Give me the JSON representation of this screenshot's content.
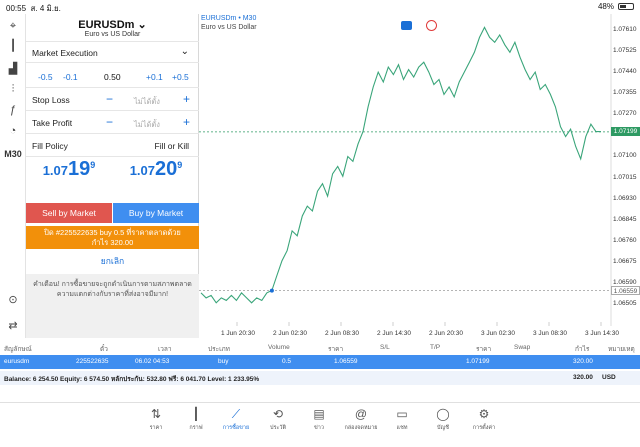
{
  "status_bar": {
    "time": "00:55",
    "date": "ส. 4 มิ.ย.",
    "battery": "48%",
    "battery_level": 0.48
  },
  "left_toolbar": {
    "items": [
      {
        "icon": "crosshair-icon",
        "glyph": "⌖"
      },
      {
        "icon": "candles-icon",
        "glyph": "┃"
      },
      {
        "icon": "bars-chart-icon",
        "glyph": "▟"
      },
      {
        "icon": "sliders-icon",
        "glyph": "⫶"
      },
      {
        "icon": "function-icon",
        "glyph": "ƒ"
      },
      {
        "icon": "shapes-icon",
        "glyph": "◔"
      },
      {
        "icon": "timeframe-label",
        "text": "M30"
      },
      {
        "icon": "chart-search-icon",
        "glyph": "⊙"
      },
      {
        "icon": "sync-icon",
        "glyph": "⇄"
      }
    ]
  },
  "order": {
    "symbol": "EURUSDm",
    "symbol_desc": "Euro vs US Dollar",
    "execution": "Market Execution",
    "volume": {
      "dec1": "-0.5",
      "dec2": "-0.1",
      "value": "0.50",
      "inc1": "+0.1",
      "inc2": "+0.5"
    },
    "stop_loss": {
      "label": "Stop Loss",
      "placeholder": "ไม่ได้ตั้ง",
      "minus": "−",
      "plus": "+"
    },
    "take_profit": {
      "label": "Take Profit",
      "placeholder": "ไม่ได้ตั้ง",
      "minus": "−",
      "plus": "+"
    },
    "fill_policy": {
      "label": "Fill Policy",
      "value": "Fill or Kill"
    },
    "bid": {
      "prefix": "1.07",
      "big": "19",
      "sup": "9"
    },
    "ask": {
      "prefix": "1.07",
      "big": "20",
      "sup": "9"
    },
    "sell_label": "Sell by Market",
    "buy_label": "Buy by Market",
    "close_line1": "ปิด #225522635 buy 0.5 ที่ราคาตลาดด้วย",
    "close_line2": "กำไร 320.00",
    "cancel_label": "ยกเลิก",
    "warning": "คำเตือน! การซื้อขายจะถูกดำเนินการตามสภาพตลาด ความแตกต่างกับราคาที่ส่งอาจมีมาก!"
  },
  "chart": {
    "title": "EURUSDm • M30",
    "subtitle": "Euro vs US Dollar",
    "current_price": "1.07199",
    "entry_price": "1.06559",
    "colors": {
      "line": "#3aa57a",
      "current": "#2e9a63",
      "entry": "#888888"
    }
  },
  "chart_data": {
    "type": "line",
    "x_ticks": [
      "1 Jun 20:30",
      "2 Jun 02:30",
      "2 Jun 08:30",
      "2 Jun 14:30",
      "2 Jun 20:30",
      "3 Jun 02:30",
      "3 Jun 08:30",
      "3 Jun 14:30"
    ],
    "y_ticks": [
      "1.07610",
      "1.07525",
      "1.07440",
      "1.07355",
      "1.07270",
      "1.07185",
      "1.07100",
      "1.07015",
      "1.06930",
      "1.06845",
      "1.06760",
      "1.06675",
      "1.06590",
      "1.06505"
    ],
    "ylim": [
      1.06465,
      1.0765
    ],
    "series": [
      {
        "values": [
          1.0655,
          1.0653,
          1.0654,
          1.0651,
          1.0653,
          1.0652,
          1.0654,
          1.0652,
          1.0655,
          1.0653,
          1.0651,
          1.0653,
          1.0652,
          1.0655,
          1.0656,
          1.0662,
          1.0668,
          1.0672,
          1.068,
          1.0678,
          1.0686,
          1.069,
          1.0688,
          1.0696,
          1.0699,
          1.0694,
          1.0703,
          1.0706,
          1.0702,
          1.071,
          1.0708,
          1.0715,
          1.072,
          1.073,
          1.0738,
          1.0744,
          1.074,
          1.0746,
          1.0743,
          1.0747,
          1.0741,
          1.0745,
          1.0742,
          1.0746,
          1.0748,
          1.0744,
          1.0739,
          1.0741,
          1.0735,
          1.0738,
          1.0734,
          1.074,
          1.0744,
          1.0748,
          1.0752,
          1.0758,
          1.0762,
          1.0758,
          1.0756,
          1.0759,
          1.0755,
          1.0752,
          1.0756,
          1.075,
          1.0745,
          1.0741,
          1.0744,
          1.0737,
          1.0739,
          1.0735,
          1.073,
          1.0722,
          1.0718,
          1.0721,
          1.0714,
          1.0709,
          1.0718,
          1.0723,
          1.072,
          1.072
        ]
      }
    ]
  },
  "positions": {
    "headers": [
      "สัญลักษณ์",
      "ตั๋ว",
      "เวลา",
      "ประเภท",
      "Volume",
      "ราคา",
      "S/L",
      "T/P",
      "ราคา",
      "Swap",
      "กำไร",
      "หมายเหตุ"
    ],
    "row": {
      "symbol": "eurusdm",
      "ticket": "225522635",
      "time": "06.02 04:53",
      "type": "buy",
      "volume": "0.5",
      "open_price": "1.06559",
      "sl": "",
      "tp": "",
      "price": "1.07199",
      "swap": "",
      "profit": "320.00"
    },
    "balance_text": "Balance: 6 254.50 Equity: 6 574.50 หลักประกัน: 532.80 ฟรี: 6 041.70 Level: 1 233.95%",
    "total_profit": "320.00",
    "currency": "USD"
  },
  "tab_bar": {
    "tabs": [
      {
        "label": "ราคา",
        "icon": "quotes-icon",
        "glyph": "⇅"
      },
      {
        "label": "กราฟ",
        "icon": "chart-icon",
        "glyph": "┃"
      },
      {
        "label": "การซื้อขาย",
        "icon": "trade-icon",
        "glyph": "⟋"
      },
      {
        "label": "ประวัติ",
        "icon": "history-icon",
        "glyph": "⟲"
      },
      {
        "label": "ข่าว",
        "icon": "news-icon",
        "glyph": "▤"
      },
      {
        "label": "กล่องจดหมาย",
        "icon": "mail-icon",
        "glyph": "@"
      },
      {
        "label": "แชท",
        "icon": "chat-icon",
        "glyph": "▭"
      },
      {
        "label": "บัญชี",
        "icon": "account-icon",
        "glyph": "◯"
      },
      {
        "label": "การตั้งค่า",
        "icon": "settings-icon",
        "glyph": "⚙"
      }
    ],
    "active": 2
  }
}
